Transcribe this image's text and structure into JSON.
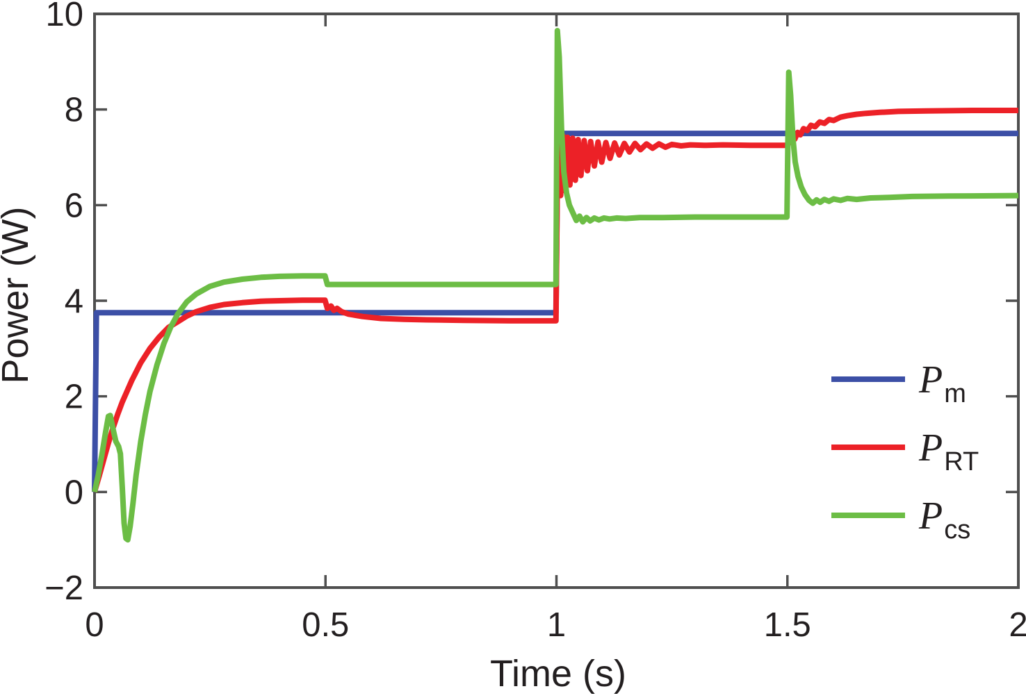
{
  "figure": {
    "xlabel": "Time (s)",
    "ylabel": "Power (W)"
  },
  "chart_data": {
    "type": "line",
    "title": "",
    "xlabel": "Time (s)",
    "ylabel": "Power (W)",
    "xlim": [
      0,
      2
    ],
    "ylim": [
      -2,
      10
    ],
    "grid": false,
    "box": true,
    "frame_color": "#4f4f4f",
    "xticks": {
      "values": [
        0,
        0.5,
        1,
        1.5,
        2
      ],
      "labels": [
        "0",
        "0.5",
        "1",
        "1.5",
        "2"
      ]
    },
    "yticks": {
      "values": [
        -2,
        0,
        2,
        4,
        6,
        8,
        10
      ],
      "labels": [
        "−2",
        "0",
        "2",
        "4",
        "6",
        "8",
        "10"
      ]
    },
    "legend": {
      "position": "inside-lower-right",
      "entries": [
        {
          "id": "pm",
          "main": "P",
          "sub": "m",
          "color": "#3C4FA6"
        },
        {
          "id": "prt",
          "main": "P",
          "sub": "RT",
          "color": "#EC2127"
        },
        {
          "id": "pcs",
          "main": "P",
          "sub": "cs",
          "color": "#6CBD45"
        }
      ]
    },
    "series": [
      {
        "id": "pm",
        "label": "P_m",
        "color": "#3C4FA6",
        "width": 8,
        "points": [
          [
            0,
            0
          ],
          [
            0.004,
            3.75
          ],
          [
            0.999,
            3.75
          ],
          [
            1.003,
            7.5
          ],
          [
            2,
            7.5
          ]
        ]
      },
      {
        "id": "prt",
        "label": "P_RT",
        "color": "#EC2127",
        "width": 8,
        "points": [
          [
            0,
            0
          ],
          [
            0.01,
            0.33
          ],
          [
            0.02,
            0.68
          ],
          [
            0.03,
            1.02
          ],
          [
            0.04,
            1.34
          ],
          [
            0.05,
            1.62
          ],
          [
            0.06,
            1.88
          ],
          [
            0.08,
            2.32
          ],
          [
            0.1,
            2.7
          ],
          [
            0.12,
            3.0
          ],
          [
            0.14,
            3.24
          ],
          [
            0.16,
            3.44
          ],
          [
            0.18,
            3.56
          ],
          [
            0.2,
            3.68
          ],
          [
            0.22,
            3.77
          ],
          [
            0.25,
            3.86
          ],
          [
            0.28,
            3.92
          ],
          [
            0.32,
            3.96
          ],
          [
            0.36,
            3.99
          ],
          [
            0.4,
            4.0
          ],
          [
            0.45,
            4.01
          ],
          [
            0.499,
            4.01
          ],
          [
            0.504,
            3.84
          ],
          [
            0.512,
            3.89
          ],
          [
            0.518,
            3.8
          ],
          [
            0.525,
            3.84
          ],
          [
            0.535,
            3.77
          ],
          [
            0.55,
            3.72
          ],
          [
            0.58,
            3.67
          ],
          [
            0.62,
            3.63
          ],
          [
            0.67,
            3.61
          ],
          [
            0.72,
            3.6
          ],
          [
            0.8,
            3.59
          ],
          [
            0.9,
            3.58
          ],
          [
            0.999,
            3.58
          ],
          [
            1.003,
            7.52
          ],
          [
            1.009,
            6.2
          ],
          [
            1.014,
            7.45
          ],
          [
            1.019,
            6.3
          ],
          [
            1.024,
            7.42
          ],
          [
            1.029,
            6.42
          ],
          [
            1.035,
            7.4
          ],
          [
            1.041,
            6.52
          ],
          [
            1.047,
            7.37
          ],
          [
            1.053,
            6.62
          ],
          [
            1.06,
            7.35
          ],
          [
            1.067,
            6.72
          ],
          [
            1.074,
            7.33
          ],
          [
            1.082,
            6.82
          ],
          [
            1.09,
            7.32
          ],
          [
            1.098,
            6.9
          ],
          [
            1.107,
            7.31
          ],
          [
            1.116,
            6.98
          ],
          [
            1.126,
            7.3
          ],
          [
            1.136,
            7.05
          ],
          [
            1.147,
            7.29
          ],
          [
            1.158,
            7.11
          ],
          [
            1.17,
            7.29
          ],
          [
            1.182,
            7.16
          ],
          [
            1.195,
            7.28
          ],
          [
            1.208,
            7.19
          ],
          [
            1.222,
            7.28
          ],
          [
            1.236,
            7.21
          ],
          [
            1.25,
            7.27
          ],
          [
            1.27,
            7.24
          ],
          [
            1.29,
            7.26
          ],
          [
            1.32,
            7.25
          ],
          [
            1.36,
            7.26
          ],
          [
            1.42,
            7.25
          ],
          [
            1.499,
            7.25
          ],
          [
            1.505,
            7.32
          ],
          [
            1.51,
            7.42
          ],
          [
            1.516,
            7.38
          ],
          [
            1.522,
            7.52
          ],
          [
            1.528,
            7.47
          ],
          [
            1.535,
            7.6
          ],
          [
            1.543,
            7.56
          ],
          [
            1.551,
            7.67
          ],
          [
            1.56,
            7.64
          ],
          [
            1.57,
            7.74
          ],
          [
            1.58,
            7.71
          ],
          [
            1.59,
            7.79
          ],
          [
            1.6,
            7.77
          ],
          [
            1.615,
            7.84
          ],
          [
            1.63,
            7.87
          ],
          [
            1.65,
            7.9
          ],
          [
            1.67,
            7.92
          ],
          [
            1.7,
            7.94
          ],
          [
            1.74,
            7.96
          ],
          [
            1.8,
            7.97
          ],
          [
            1.9,
            7.98
          ],
          [
            2,
            7.98
          ]
        ]
      },
      {
        "id": "pcs",
        "label": "P_cs",
        "color": "#6CBD45",
        "width": 8,
        "points": [
          [
            0,
            0
          ],
          [
            0.008,
            0.35
          ],
          [
            0.016,
            0.78
          ],
          [
            0.024,
            1.25
          ],
          [
            0.03,
            1.58
          ],
          [
            0.034,
            1.6
          ],
          [
            0.04,
            1.32
          ],
          [
            0.046,
            1.06
          ],
          [
            0.052,
            0.95
          ],
          [
            0.056,
            0.8
          ],
          [
            0.06,
            0.1
          ],
          [
            0.064,
            -0.65
          ],
          [
            0.068,
            -0.97
          ],
          [
            0.072,
            -1.0
          ],
          [
            0.077,
            -0.72
          ],
          [
            0.083,
            -0.25
          ],
          [
            0.09,
            0.35
          ],
          [
            0.1,
            1.05
          ],
          [
            0.11,
            1.62
          ],
          [
            0.12,
            2.1
          ],
          [
            0.135,
            2.65
          ],
          [
            0.15,
            3.1
          ],
          [
            0.165,
            3.45
          ],
          [
            0.18,
            3.72
          ],
          [
            0.2,
            3.98
          ],
          [
            0.22,
            4.14
          ],
          [
            0.25,
            4.3
          ],
          [
            0.28,
            4.39
          ],
          [
            0.32,
            4.45
          ],
          [
            0.36,
            4.49
          ],
          [
            0.4,
            4.51
          ],
          [
            0.45,
            4.52
          ],
          [
            0.499,
            4.52
          ],
          [
            0.504,
            4.34
          ],
          [
            0.999,
            4.34
          ],
          [
            1.002,
            9.65
          ],
          [
            1.006,
            9.1
          ],
          [
            1.011,
            7.6
          ],
          [
            1.016,
            6.7
          ],
          [
            1.022,
            6.25
          ],
          [
            1.028,
            6.0
          ],
          [
            1.035,
            5.85
          ],
          [
            1.043,
            5.68
          ],
          [
            1.05,
            5.77
          ],
          [
            1.057,
            5.65
          ],
          [
            1.065,
            5.74
          ],
          [
            1.073,
            5.67
          ],
          [
            1.082,
            5.73
          ],
          [
            1.092,
            5.69
          ],
          [
            1.103,
            5.73
          ],
          [
            1.115,
            5.71
          ],
          [
            1.13,
            5.73
          ],
          [
            1.15,
            5.72
          ],
          [
            1.18,
            5.74
          ],
          [
            1.23,
            5.74
          ],
          [
            1.3,
            5.75
          ],
          [
            1.4,
            5.75
          ],
          [
            1.499,
            5.75
          ],
          [
            1.503,
            8.78
          ],
          [
            1.507,
            8.3
          ],
          [
            1.512,
            7.4
          ],
          [
            1.517,
            6.9
          ],
          [
            1.523,
            6.6
          ],
          [
            1.53,
            6.38
          ],
          [
            1.538,
            6.22
          ],
          [
            1.547,
            6.1
          ],
          [
            1.555,
            6.04
          ],
          [
            1.563,
            6.11
          ],
          [
            1.571,
            6.06
          ],
          [
            1.58,
            6.12
          ],
          [
            1.59,
            6.08
          ],
          [
            1.6,
            6.13
          ],
          [
            1.615,
            6.1
          ],
          [
            1.63,
            6.14
          ],
          [
            1.65,
            6.12
          ],
          [
            1.68,
            6.15
          ],
          [
            1.72,
            6.16
          ],
          [
            1.77,
            6.18
          ],
          [
            1.85,
            6.19
          ],
          [
            2,
            6.2
          ]
        ]
      }
    ]
  }
}
